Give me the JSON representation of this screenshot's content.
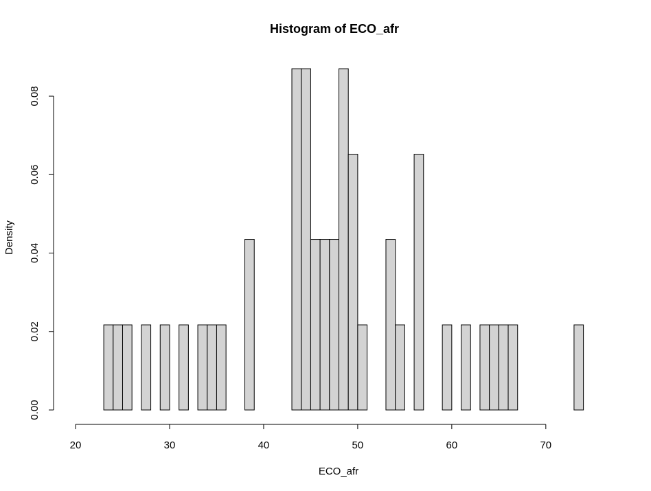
{
  "chart_data": {
    "type": "bar",
    "subtype": "histogram",
    "title": "Histogram of ECO_afr",
    "xlabel": "ECO_afr",
    "ylabel": "Density",
    "xlim": [
      20,
      76
    ],
    "ylim": [
      0,
      0.087
    ],
    "x_ticks": [
      20,
      30,
      40,
      50,
      60,
      70
    ],
    "y_ticks": [
      0.0,
      0.02,
      0.04,
      0.06,
      0.08
    ],
    "x_tick_labels": [
      "20",
      "30",
      "40",
      "50",
      "60",
      "70"
    ],
    "y_tick_labels": [
      "0.00",
      "0.02",
      "0.04",
      "0.06",
      "0.08"
    ],
    "bin_start": 21,
    "bin_width": 1,
    "bar_fill": "#d3d3d3",
    "bar_stroke": "#000000",
    "grid": false,
    "values": [
      0,
      0,
      0.0217,
      0.0217,
      0.0217,
      0,
      0.0217,
      0,
      0.0217,
      0,
      0.0217,
      0,
      0.0217,
      0.0217,
      0.0217,
      0,
      0,
      0.0435,
      0,
      0,
      0,
      0,
      0.087,
      0.087,
      0.0435,
      0.0435,
      0.0435,
      0.087,
      0.0652,
      0.0217,
      0,
      0,
      0.0435,
      0.0217,
      0,
      0.0652,
      0,
      0,
      0.0217,
      0,
      0.0217,
      0,
      0.0217,
      0.0217,
      0.0217,
      0.0217,
      0,
      0,
      0,
      0,
      0,
      0,
      0.0217,
      0
    ]
  }
}
